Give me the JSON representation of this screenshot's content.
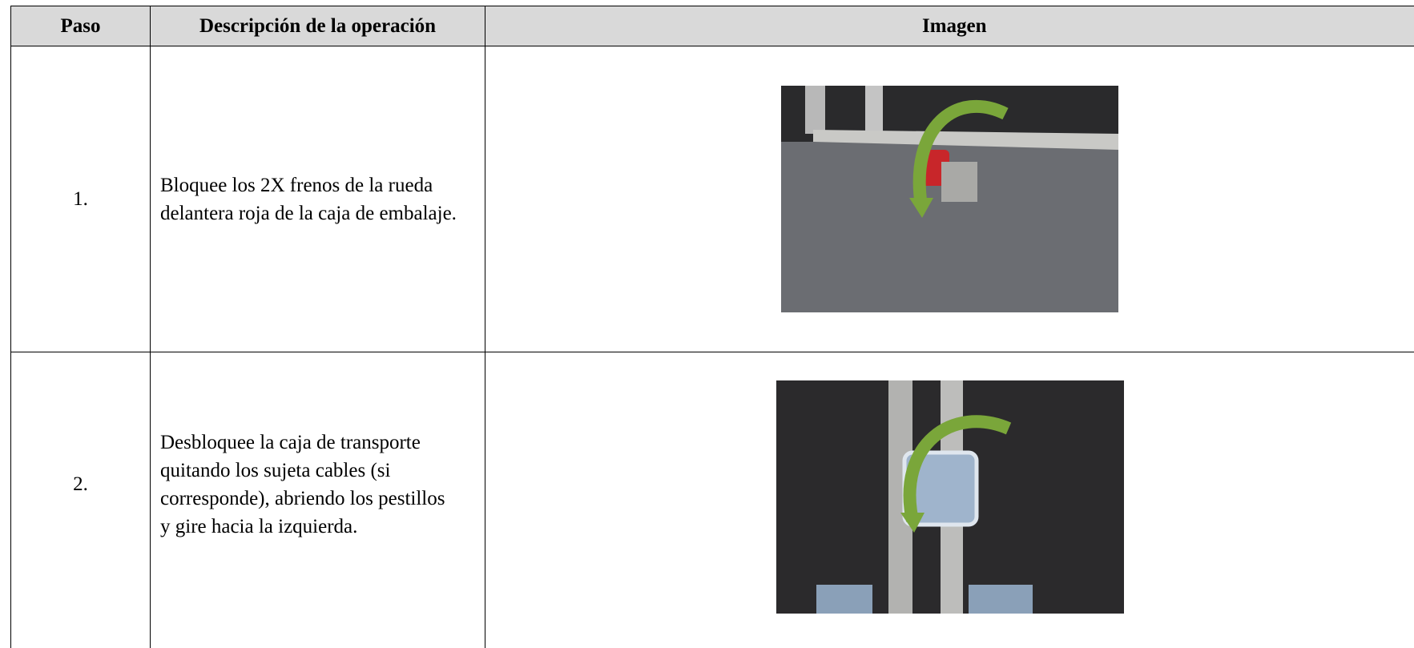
{
  "table": {
    "headers": [
      "Paso",
      "Descripción de la operación",
      "Imagen"
    ],
    "rows": [
      [
        "1.",
        "Bloquee los 2X frenos de la rueda delantera roja de la caja de embalaje."
      ],
      [
        "2.",
        "Desbloquee la caja de transporte quitando los sujeta cables (si corresponde), abriendo los pestillos y gire hacia la izquierda."
      ]
    ]
  }
}
